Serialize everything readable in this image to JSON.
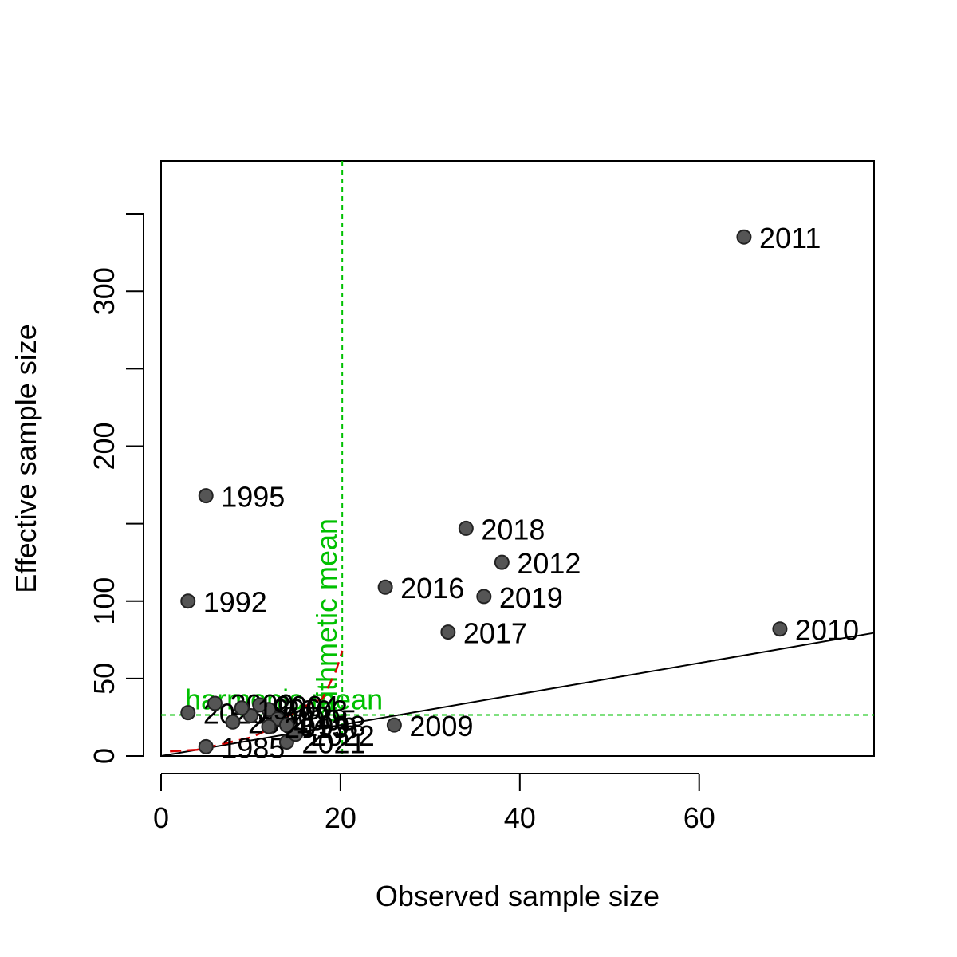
{
  "chart_data": {
    "type": "scatter",
    "title": "",
    "xlabel": "Observed sample size",
    "ylabel": "Effective sample size",
    "xlim": [
      0,
      79.5
    ],
    "ylim": [
      0,
      384
    ],
    "x_ticks": [
      0,
      20,
      40,
      60
    ],
    "y_ticks": [
      0,
      50,
      100,
      150,
      200,
      250,
      300,
      350
    ],
    "y_tick_labels": [
      "0",
      "50",
      "100",
      "",
      "200",
      "",
      "300",
      ""
    ],
    "grid": false,
    "legend": "none",
    "point_color": "#555555",
    "points": [
      {
        "label": "1985",
        "x": 5,
        "y": 6
      },
      {
        "label": "1992",
        "x": 3,
        "y": 100
      },
      {
        "label": "1995",
        "x": 5,
        "y": 168
      },
      {
        "label": "2009",
        "x": 26,
        "y": 20
      },
      {
        "label": "2010",
        "x": 69,
        "y": 82
      },
      {
        "label": "2011",
        "x": 65,
        "y": 335
      },
      {
        "label": "2012",
        "x": 38,
        "y": 125
      },
      {
        "label": "2016",
        "x": 25,
        "y": 109
      },
      {
        "label": "2017",
        "x": 32,
        "y": 80
      },
      {
        "label": "2018",
        "x": 34,
        "y": 147
      },
      {
        "label": "2019",
        "x": 36,
        "y": 103
      },
      {
        "label": "2020",
        "x": 3,
        "y": 28
      },
      {
        "label": "2021",
        "x": 14,
        "y": 9
      },
      {
        "label": "2022",
        "x": 15,
        "y": 14
      },
      {
        "label": "2000",
        "x": 6,
        "y": 34
      },
      {
        "label": "2001",
        "x": 8,
        "y": 22
      },
      {
        "label": "2002",
        "x": 10,
        "y": 26
      },
      {
        "label": "2003",
        "x": 12,
        "y": 30
      },
      {
        "label": "2004",
        "x": 11,
        "y": 33
      },
      {
        "label": "2005",
        "x": 13,
        "y": 24
      },
      {
        "label": "1996",
        "x": 9,
        "y": 31
      },
      {
        "label": "1998",
        "x": 14,
        "y": 20
      },
      {
        "label": "2013",
        "x": 12,
        "y": 19
      }
    ],
    "fit_line": {
      "x": [
        0,
        79.5
      ],
      "y": [
        0,
        79.5
      ],
      "color": "#000000"
    },
    "smooth_line": {
      "x": [
        1,
        4,
        7,
        10,
        12,
        14,
        16,
        18,
        19.5,
        20.2
      ],
      "y": [
        3,
        4,
        8,
        12,
        17,
        25,
        32,
        37,
        55,
        68
      ],
      "color": "#dd0000"
    },
    "ref_lines": [
      {
        "orientation": "vertical",
        "value": 20.2,
        "label": "arithmetic mean",
        "color": "#00c000"
      },
      {
        "orientation": "horizontal",
        "value": 26.5,
        "label": "harmonic mean",
        "color": "#00c000"
      }
    ]
  }
}
